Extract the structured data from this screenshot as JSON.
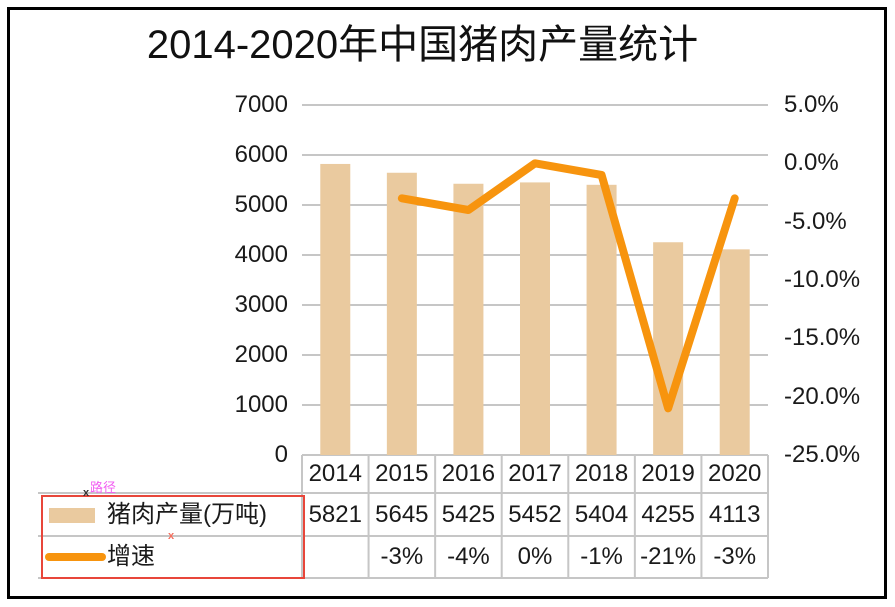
{
  "title": "2014-2020年中国猪肉产量统计",
  "annotations": {
    "path_label": "路径",
    "marker": "x",
    "box_color": "#E8463A",
    "path_label_color": "#F25FF2"
  },
  "palette": {
    "frame": "#000000",
    "gridline": "#C6C6C6",
    "table_border": "#C6C6C6",
    "text": "#1A1A1A"
  },
  "chart_data": {
    "type": "bar+line",
    "title": "2014-2020年中国猪肉产量统计",
    "categories": [
      "2014",
      "2015",
      "2016",
      "2017",
      "2018",
      "2019",
      "2020"
    ],
    "series": [
      {
        "name": "猪肉产量(万吨)",
        "type": "bar",
        "axis": "left",
        "color": "#EACA9F",
        "values": [
          5821,
          5645,
          5425,
          5452,
          5404,
          4255,
          4113
        ]
      },
      {
        "name": "增速",
        "type": "line",
        "axis": "right",
        "color": "#F7940E",
        "values": [
          null,
          -0.03,
          -0.04,
          0,
          -0.01,
          -0.21,
          -0.03
        ],
        "display": [
          "",
          "-3%",
          "-4%",
          "0%",
          "-1%",
          "-21%",
          "-3%"
        ]
      }
    ],
    "left_axis": {
      "min": 0,
      "max": 7000,
      "major_unit": 1000,
      "ticks": [
        "7000",
        "6000",
        "5000",
        "4000",
        "3000",
        "2000",
        "1000",
        "0"
      ]
    },
    "right_axis": {
      "min": -0.25,
      "max": 0.05,
      "major_unit": 0.05,
      "ticks": [
        "5.0%",
        "0.0%",
        "-5.0%",
        "-10.0%",
        "-15.0%",
        "-20.0%",
        "-25.0%"
      ]
    },
    "grid": true,
    "legend_position": "data-table-left"
  }
}
